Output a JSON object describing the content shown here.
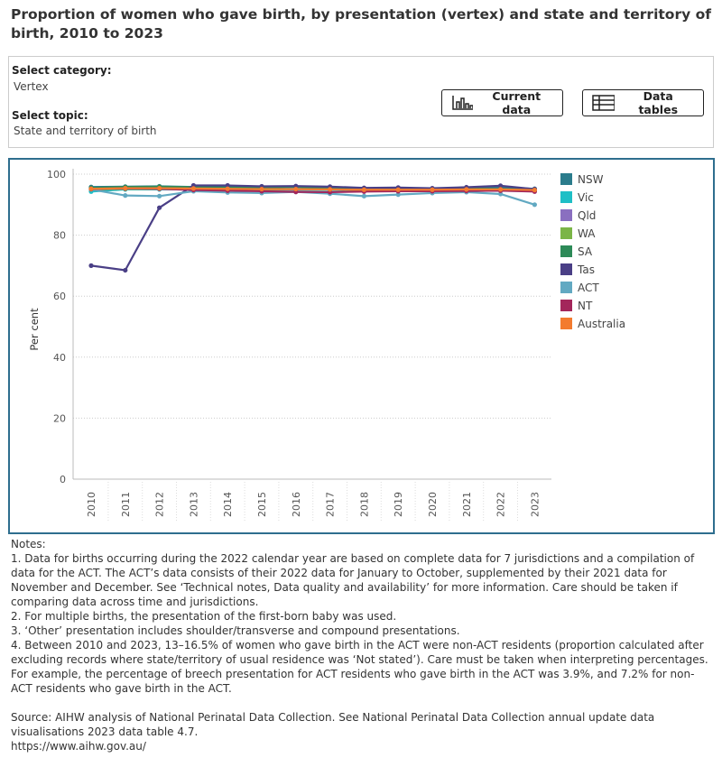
{
  "header": {
    "title": "Proportion of women who gave birth, by presentation (vertex) and state and territory of birth, 2010 to 2023"
  },
  "controls": {
    "category_label": "Select category:",
    "category_value": "Vertex",
    "topic_label": "Select topic:",
    "topic_value": "State and territory of birth",
    "current_data": "Current data",
    "data_tables": "Data tables"
  },
  "chart_data": {
    "type": "line",
    "y_label": "Per cent",
    "categories": [
      "2010",
      "2011",
      "2012",
      "2013",
      "2014",
      "2015",
      "2016",
      "2017",
      "2018",
      "2019",
      "2020",
      "2021",
      "2022",
      "2023"
    ],
    "ylim": [
      0,
      100
    ],
    "yticks": [
      0,
      20,
      40,
      60,
      80,
      100
    ],
    "grid": true,
    "legend": "right",
    "series": [
      {
        "name": "NSW",
        "color": "#2b7c8c",
        "values": [
          95.8,
          95.9,
          96,
          95.8,
          95.8,
          95.7,
          95.8,
          95.5,
          95.3,
          95.3,
          95.2,
          95.4,
          95.6,
          95.2
        ]
      },
      {
        "name": "Vic",
        "color": "#1fbfc6",
        "values": [
          94.3,
          95,
          95,
          95,
          95,
          94.9,
          94.9,
          94.8,
          94.7,
          94.6,
          94.6,
          94.6,
          94.6,
          94.4
        ]
      },
      {
        "name": "Qld",
        "color": "#8a6fc0",
        "values": [
          95.4,
          95.5,
          95.5,
          95.3,
          95.2,
          95.1,
          95,
          95,
          94.9,
          94.9,
          94.9,
          95,
          95,
          94.8
        ]
      },
      {
        "name": "WA",
        "color": "#7bb547",
        "values": [
          95,
          95.2,
          95.2,
          95,
          95,
          95,
          95.1,
          95,
          94.8,
          94.6,
          94.8,
          95,
          95,
          94.8
        ]
      },
      {
        "name": "SA",
        "color": "#2d8a58",
        "values": [
          95.5,
          95.8,
          95.9,
          95.7,
          95.6,
          95.6,
          95.9,
          95.2,
          95,
          95,
          95.1,
          95.3,
          95.1,
          94.9
        ]
      },
      {
        "name": "Tas",
        "color": "#4a3f86",
        "values": [
          70,
          68.5,
          89,
          96.3,
          96.3,
          96,
          96.1,
          95.9,
          95.5,
          95.6,
          95.4,
          95.7,
          96.2,
          95.1
        ]
      },
      {
        "name": "ACT",
        "color": "#62a9c2",
        "values": [
          95,
          93,
          92.8,
          94.4,
          94,
          93.8,
          94.2,
          93.6,
          92.8,
          93.3,
          93.8,
          94.1,
          93.5,
          90
        ]
      },
      {
        "name": "NT",
        "color": "#a3265b",
        "values": [
          95.1,
          95.3,
          95.2,
          94.8,
          94.6,
          94.4,
          94.2,
          94.1,
          94.3,
          94.4,
          94.4,
          94.5,
          94.6,
          94.3
        ]
      },
      {
        "name": "Australia",
        "color": "#f37b2f",
        "values": [
          95.2,
          95.4,
          95.4,
          95.3,
          95.2,
          95.1,
          95.1,
          95,
          94.9,
          94.9,
          94.9,
          95,
          95,
          94.8
        ]
      }
    ]
  },
  "notes": {
    "heading": "Notes:",
    "items": [
      "1. Data for births occurring during the 2022 calendar year are based on complete data for 7 jurisdictions and a compilation of data for the ACT. The ACT’s data consists of their 2022 data for January to October, supplemented by their 2021 data for November and December. See ‘Technical notes, Data quality and availability’ for more information. Care should be taken if comparing data across time and jurisdictions.",
      "2. For multiple births, the presentation of the first-born baby was used.",
      "3. ‘Other’ presentation includes shoulder/transverse and compound presentations.",
      "4. Between 2010 and 2023, 13–16.5% of women who gave birth in the ACT were non-ACT residents (proportion calculated after excluding records where state/territory of usual residence was ‘Not stated’). Care must be taken when interpreting percentages. For example, the percentage of breech presentation for ACT residents who gave birth in the ACT was 3.9%, and 7.2% for non-ACT residents who gave birth in the ACT."
    ],
    "source": "Source: AIHW analysis of National Perinatal Data Collection. See National Perinatal Data Collection annual update data visualisations 2023 data table 4.7.",
    "url": "https://www.aihw.gov.au/"
  }
}
